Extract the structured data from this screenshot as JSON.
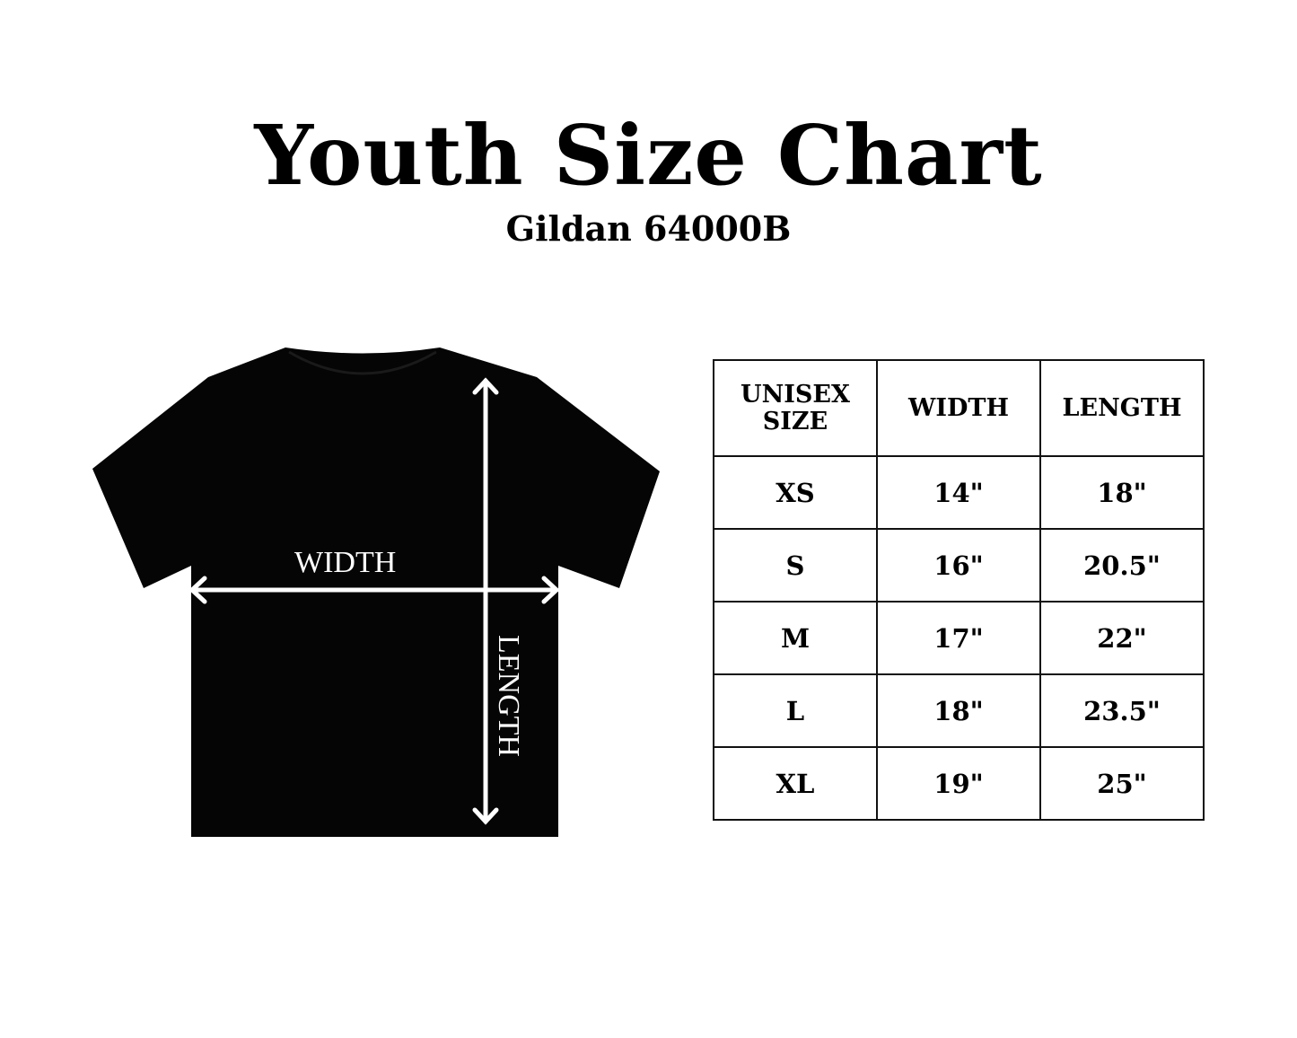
{
  "title": "Youth Size Chart",
  "subtitle": "Gildan 64000B",
  "diagram": {
    "width_label": "WIDTH",
    "length_label": "LENGTH",
    "shirt_color": "#000000",
    "arrow_color": "#ffffff"
  },
  "table": {
    "headers": [
      "UNISEX SIZE",
      "WIDTH",
      "LENGTH"
    ],
    "rows": [
      [
        "XS",
        "14\"",
        "18\""
      ],
      [
        "S",
        "16\"",
        "20.5\""
      ],
      [
        "M",
        "17\"",
        "22\""
      ],
      [
        "L",
        "18\"",
        "23.5\""
      ],
      [
        "XL",
        "19\"",
        "25\""
      ]
    ]
  }
}
